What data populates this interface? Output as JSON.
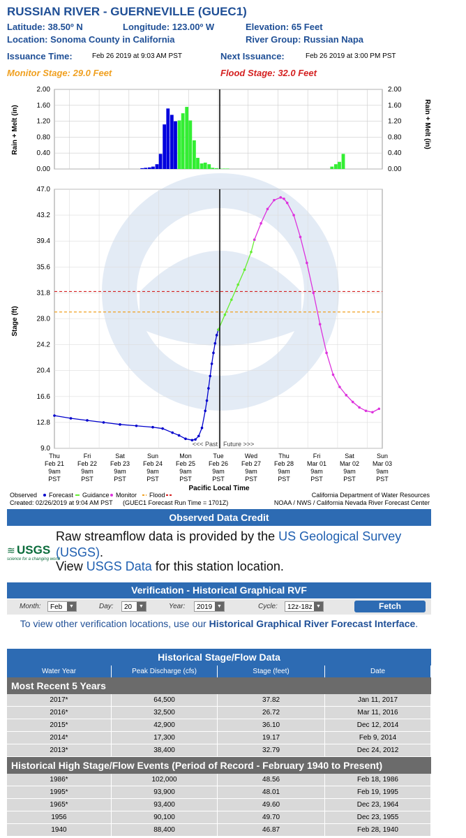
{
  "header": {
    "title": "RUSSIAN RIVER - GUERNEVILLE (GUEC1)",
    "latitude": "Latitude: 38.50º N",
    "longitude": "Longitude: 123.00º W",
    "elevation": "Elevation: 65 Feet",
    "location": "Location: Sonoma County in California",
    "river_group": "River Group: Russian Napa",
    "issuance_label": "Issuance Time:",
    "issuance_value": "Feb 26 2019 at 9:03 AM PST",
    "next_label": "Next Issuance:",
    "next_value": "Feb 26 2019 at 3:00 PM PST",
    "monitor_stage": "Monitor Stage: 29.0 Feet",
    "flood_stage": "Flood Stage: 32.0 Feet",
    "colors": {
      "title": "#1f4f96",
      "monitor": "#f0a020",
      "flood": "#d42020"
    }
  },
  "chart_data": [
    {
      "type": "bar",
      "ylabel": "Rain + Melt (in)",
      "ylim": [
        0,
        2.0
      ],
      "yticks": [
        "2.00",
        "1.60",
        "1.20",
        "0.80",
        "0.40",
        "0.00"
      ],
      "x_day_index": [
        2.94,
        3.06,
        3.19,
        3.31,
        3.44,
        3.56,
        3.69,
        3.81,
        3.94,
        4.06,
        4.19,
        4.31,
        4.44,
        4.56,
        4.69,
        4.81,
        4.94,
        5.06,
        5.19,
        5.31,
        5.44,
        5.56,
        5.69,
        5.81,
        9.31,
        9.44,
        9.56,
        9.69
      ],
      "values": [
        0.02,
        0.03,
        0.04,
        0.06,
        0.12,
        0.38,
        1.12,
        1.52,
        1.36,
        1.2,
        1.22,
        1.4,
        1.56,
        1.22,
        0.72,
        0.28,
        0.14,
        0.16,
        0.12,
        0.03,
        0.02,
        0.01,
        0.01,
        0.01,
        0.06,
        0.12,
        0.18,
        0.38
      ],
      "series_color": [
        "#0000dd",
        "#0000dd",
        "#0000dd",
        "#0000dd",
        "#0000dd",
        "#0000dd",
        "#0000dd",
        "#0000dd",
        "#0000dd",
        "#0000dd",
        "#33ee33",
        "#33ee33",
        "#33ee33",
        "#33ee33",
        "#33ee33",
        "#33ee33",
        "#33ee33",
        "#33ee33",
        "#33ee33",
        "#33ee33",
        "#33ee33",
        "#33ee33",
        "#33ee33",
        "#33ee33",
        "#33ee33",
        "#33ee33",
        "#33ee33",
        "#33ee33"
      ]
    },
    {
      "type": "line",
      "ylabel": "Stage (ft)",
      "xlabel": "Pacific Local Time",
      "ylim": [
        9.0,
        47.0
      ],
      "yticks": [
        "47.0",
        "43.2",
        "39.4",
        "35.6",
        "31.8",
        "28.0",
        "24.2",
        "20.4",
        "16.6",
        "12.8",
        "9.0"
      ],
      "x_ticks": [
        {
          "day": "Thu",
          "date": "Feb 21",
          "time": "9am",
          "tz": "PST"
        },
        {
          "day": "Fri",
          "date": "Feb 22",
          "time": "9am",
          "tz": "PST"
        },
        {
          "day": "Sat",
          "date": "Feb 23",
          "time": "9am",
          "tz": "PST"
        },
        {
          "day": "Sun",
          "date": "Feb 24",
          "time": "9am",
          "tz": "PST"
        },
        {
          "day": "Mon",
          "date": "Feb 25",
          "time": "9am",
          "tz": "PST"
        },
        {
          "day": "Tue",
          "date": "Feb 26",
          "time": "9am",
          "tz": "PST"
        },
        {
          "day": "Wed",
          "date": "Feb 27",
          "time": "9am",
          "tz": "PST"
        },
        {
          "day": "Thu",
          "date": "Feb 28",
          "time": "9am",
          "tz": "PST"
        },
        {
          "day": "Fri",
          "date": "Mar 01",
          "time": "9am",
          "tz": "PST"
        },
        {
          "day": "Sat",
          "date": "Mar 02",
          "time": "9am",
          "tz": "PST"
        },
        {
          "day": "Sun",
          "date": "Mar 03",
          "time": "9am",
          "tz": "PST"
        }
      ],
      "monitor_stage": 29.0,
      "flood_stage": 32.0,
      "past_label": "<<< Past",
      "future_label": "Future >>>",
      "series": [
        {
          "name": "Observed",
          "color": "#0000cc",
          "x_day_index": [
            0.0,
            0.5,
            1.0,
            1.5,
            2.0,
            2.5,
            3.0,
            3.3,
            3.6,
            3.8,
            4.0,
            4.2,
            4.3,
            4.4,
            4.5,
            4.6,
            4.65,
            4.7,
            4.75,
            4.8,
            4.85,
            4.9,
            4.95,
            5.0
          ],
          "values": [
            13.8,
            13.4,
            13.1,
            12.8,
            12.5,
            12.3,
            12.1,
            11.9,
            11.3,
            10.9,
            10.4,
            10.2,
            10.3,
            10.8,
            12.0,
            14.5,
            16.0,
            17.8,
            19.6,
            21.4,
            23.0,
            24.4,
            25.6,
            26.4
          ]
        },
        {
          "name": "Guidance",
          "color": "#66ee33",
          "x_day_index": [
            5.0,
            5.2,
            5.4,
            5.6,
            5.8,
            6.0,
            6.1
          ],
          "values": [
            26.4,
            28.6,
            30.8,
            33.0,
            35.2,
            37.8,
            39.6
          ]
        },
        {
          "name": "Monitor",
          "color": "#dd33dd",
          "x_day_index": [
            6.1,
            6.3,
            6.5,
            6.7,
            6.9,
            7.0,
            7.1,
            7.3,
            7.5,
            7.7,
            7.9,
            8.1,
            8.3,
            8.5,
            8.7,
            8.9,
            9.1,
            9.3,
            9.5,
            9.7,
            9.9
          ],
          "values": [
            39.6,
            42.0,
            44.1,
            45.4,
            45.8,
            45.6,
            45.0,
            43.2,
            40.0,
            36.2,
            31.8,
            27.2,
            23.0,
            19.8,
            18.0,
            16.8,
            15.8,
            15.0,
            14.5,
            14.3,
            14.8
          ]
        }
      ]
    }
  ],
  "legend": {
    "observed": "Observed",
    "forecast": "Forecast",
    "guidance": "Guidance",
    "monitor": "Monitor",
    "flood": "Flood",
    "created": "Created: 02/26/2019 at 9:04 AM PST",
    "run_time": "(GUEC1 Forecast Run Time = 1701Z)",
    "credit1": "California Department of Water Resources",
    "credit2": "NOAA / NWS / California Nevada River Forecast Center"
  },
  "credit": {
    "title": "Observed Data Credit",
    "usgs_logo": "USGS",
    "usgs_tagline": "science for a changing world",
    "line1_pre": "Raw streamflow data is provided by the ",
    "line1_link": "US Geological Survey (USGS)",
    "line1_post": ".",
    "line2_pre": "View ",
    "line2_link": "USGS Data",
    "line2_post": " for this station location."
  },
  "verification": {
    "title": "Verification - Historical Graphical RVF",
    "month_label": "Month:",
    "month_value": "Feb",
    "day_label": "Day:",
    "day_value": "20",
    "year_label": "Year:",
    "year_value": "2019",
    "cycle_label": "Cycle:",
    "cycle_value": "12z-18z",
    "fetch_label": "Fetch",
    "info_pre": "To view other verification locations, use our ",
    "info_link": "Historical Graphical River Forecast Interface",
    "info_post": "."
  },
  "history": {
    "title": "Historical Stage/Flow Data",
    "columns": [
      "Water Year",
      "Peak Discharge (cfs)",
      "Stage (feet)",
      "Date"
    ],
    "section1": "Most Recent 5 Years",
    "recent": [
      [
        "2017*",
        "64,500",
        "37.82",
        "Jan 11, 2017"
      ],
      [
        "2016*",
        "32,500",
        "26.72",
        "Mar 11, 2016"
      ],
      [
        "2015*",
        "42,900",
        "36.10",
        "Dec 12, 2014"
      ],
      [
        "2014*",
        "17,300",
        "19.17",
        "Feb 9, 2014"
      ],
      [
        "2013*",
        "38,400",
        "32.79",
        "Dec 24, 2012"
      ]
    ],
    "section2": "Historical High Stage/Flow Events (Period of Record - February 1940 to Present)",
    "events": [
      [
        "1986*",
        "102,000",
        "48.56",
        "Feb 18, 1986"
      ],
      [
        "1995*",
        "93,900",
        "48.01",
        "Feb 19, 1995"
      ],
      [
        "1965*",
        "93,400",
        "49.60",
        "Dec 23, 1964"
      ],
      [
        "1956",
        "90,100",
        "49.70",
        "Dec 23, 1955"
      ],
      [
        "1940",
        "88,400",
        "46.87",
        "Feb 28, 1940"
      ]
    ]
  }
}
